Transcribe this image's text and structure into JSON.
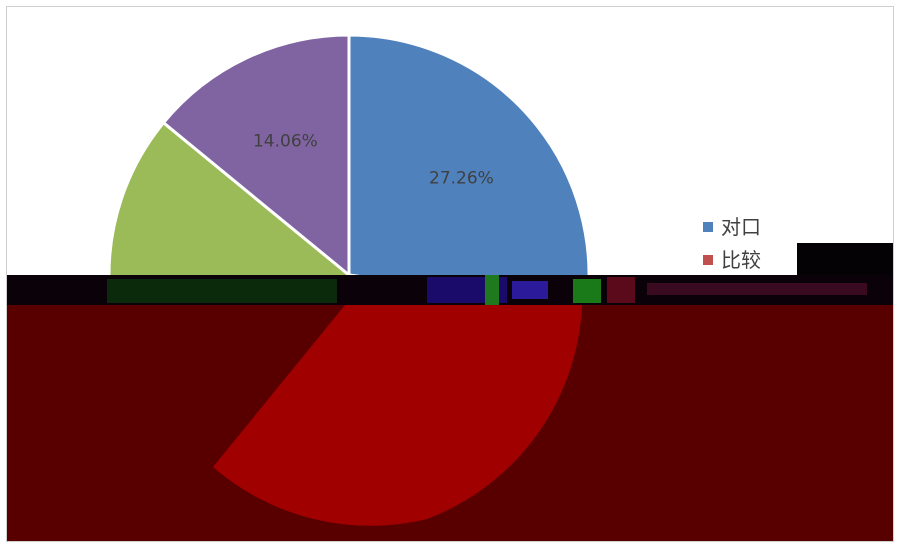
{
  "chart_data": {
    "type": "pie",
    "slices": [
      {
        "label": "对口",
        "value": 27.26,
        "percent_label": "27.26%",
        "color": "#4f81bd"
      },
      {
        "label": "比较",
        "value": 34.73,
        "percent_label": "",
        "color": "#c0504d"
      },
      {
        "label": "",
        "value": 23.95,
        "percent_label": "",
        "color": "#9bbb59"
      },
      {
        "label": "",
        "value": 14.06,
        "percent_label": "14.06%",
        "color": "#8064a2"
      }
    ],
    "legend_placement": "right",
    "start_angle": "top, clockwise"
  },
  "damage_colors": {
    "band_dark": "#0a0208",
    "band_red": "#580000",
    "bright_red": "#a00000"
  }
}
